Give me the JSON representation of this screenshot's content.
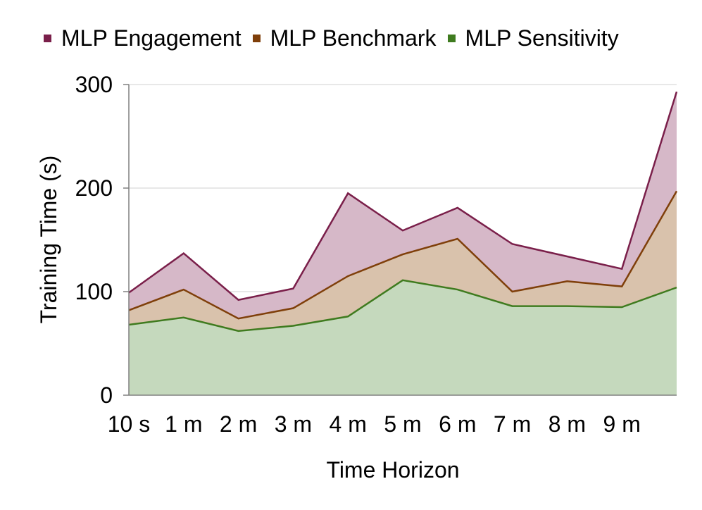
{
  "chart_data": {
    "type": "area",
    "stacked": false,
    "title": "",
    "xlabel": "Time Horizon",
    "ylabel": "Training Time (s)",
    "ylim": [
      0,
      300
    ],
    "yticks": [
      0,
      100,
      200,
      300
    ],
    "categories": [
      "10 s",
      "1 m",
      "2 m",
      "3 m",
      "4 m",
      "5 m",
      "6 m",
      "7 m",
      "8 m",
      "9 m",
      ""
    ],
    "grid": true,
    "legend_position": "top",
    "series": [
      {
        "name": "MLP Engagement",
        "color": "#7a1f4a",
        "fill": "#d6b8c8",
        "values": [
          99,
          137,
          92,
          103,
          195,
          159,
          181,
          146,
          134,
          122,
          293
        ]
      },
      {
        "name": "MLP Benchmark",
        "color": "#7f3f0a",
        "fill": "#d9c2ac",
        "values": [
          82,
          102,
          74,
          84,
          115,
          136,
          151,
          100,
          110,
          105,
          197
        ]
      },
      {
        "name": "MLP Sensitivity",
        "color": "#3f7b1f",
        "fill": "#c5d9bd",
        "values": [
          68,
          75,
          62,
          67,
          76,
          111,
          102,
          86,
          86,
          85,
          104
        ]
      }
    ]
  }
}
